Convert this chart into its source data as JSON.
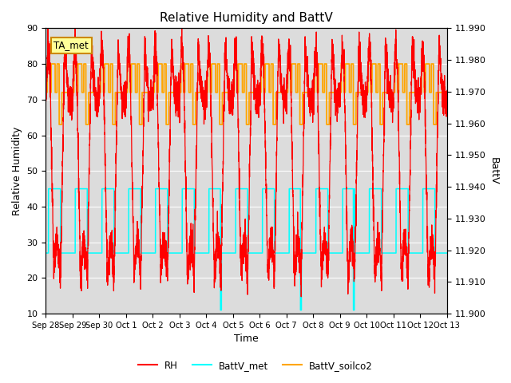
{
  "title": "Relative Humidity and BattV",
  "xlabel": "Time",
  "ylabel_left": "Relative Humidity",
  "ylabel_right": "BattV",
  "annotation": "TA_met",
  "ylim_left": [
    10,
    90
  ],
  "ylim_right": [
    11.9,
    11.99
  ],
  "yticks_left": [
    10,
    20,
    30,
    40,
    50,
    60,
    70,
    80,
    90
  ],
  "yticks_right": [
    11.9,
    11.91,
    11.92,
    11.93,
    11.94,
    11.95,
    11.96,
    11.97,
    11.98,
    11.99
  ],
  "rh_color": "#FF0000",
  "battv_met_color": "#00FFFF",
  "battv_soilco2_color": "#FFA500",
  "bg_color": "#DCDCDC",
  "grid_color": "#FFFFFF",
  "x_tick_labels": [
    "Sep 28",
    "Sep 29",
    "Sep 30",
    "Oct 1",
    "Oct 2",
    "Oct 3",
    "Oct 4",
    "Oct 5",
    "Oct 6",
    "Oct 7",
    "Oct 8",
    "Oct 9",
    "Oct 10",
    "Oct 11",
    "Oct 12",
    "Oct 13"
  ],
  "x_tick_positions": [
    0,
    1,
    2,
    3,
    4,
    5,
    6,
    7,
    8,
    9,
    10,
    11,
    12,
    13,
    14,
    15
  ]
}
